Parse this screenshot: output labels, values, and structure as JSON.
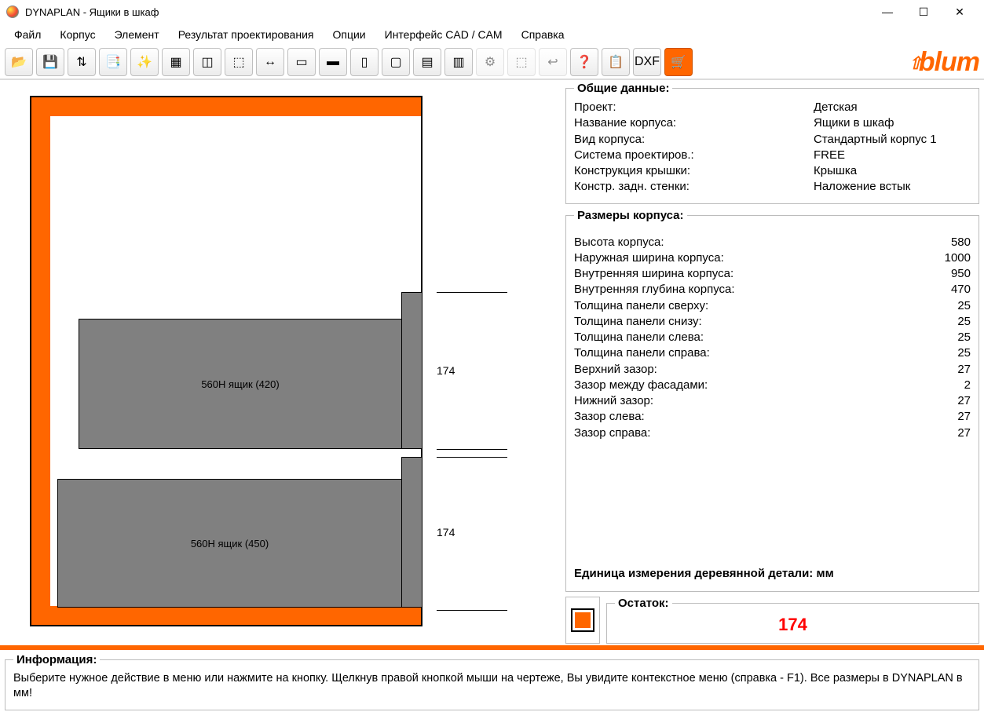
{
  "window": {
    "title": "DYNAPLAN - Ящики в шкаф"
  },
  "menu": {
    "file": "Файл",
    "corpus": "Корпус",
    "element": "Элемент",
    "result": "Результат проектирования",
    "options": "Опции",
    "cadcam": "Интерфейс CAD / CAM",
    "help": "Справка"
  },
  "brand": "blum",
  "drawing": {
    "drawer1_label": "560H ящик (420)",
    "drawer2_label": "560H ящик (450)",
    "dim1": "174",
    "dim2": "174"
  },
  "general": {
    "legend": "Общие данные:",
    "project_k": "Проект:",
    "project_v": "Детская",
    "name_k": "Название корпуса:",
    "name_v": "Ящики в шкаф",
    "type_k": "Вид корпуса:",
    "type_v": "Стандартный корпус 1",
    "system_k": "Система проектиров.:",
    "system_v": "FREE",
    "lid_k": "Конструкция крышки:",
    "lid_v": "Крышка",
    "back_k": "Констр. задн. стенки:",
    "back_v": "Наложение встык"
  },
  "dims": {
    "legend": "Размеры корпуса:",
    "rows": [
      {
        "k": "Высота корпуса:",
        "v": "580"
      },
      {
        "k": "Наружная ширина корпуса:",
        "v": "1000"
      },
      {
        "k": "Внутренняя ширина корпуса:",
        "v": "950"
      },
      {
        "k": "Внутренняя глубина корпуса:",
        "v": "470"
      },
      {
        "k": "Толщина панели сверху:",
        "v": "25"
      },
      {
        "k": "Толщина панели снизу:",
        "v": "25"
      },
      {
        "k": "Толщина панели слева:",
        "v": "25"
      },
      {
        "k": "Толщина панели справа:",
        "v": "25"
      },
      {
        "k": "Верхний зазор:",
        "v": "27"
      },
      {
        "k": "Зазор между фасадами:",
        "v": "2"
      },
      {
        "k": "Нижний зазор:",
        "v": "27"
      },
      {
        "k": "Зазор слева:",
        "v": "27"
      },
      {
        "k": "Зазор справа:",
        "v": "27"
      }
    ],
    "unit_note": "Единица измерения деревянной детали: мм"
  },
  "remainder": {
    "legend": "Остаток:",
    "value": "174"
  },
  "info": {
    "legend": "Информация:",
    "text": "Выберите нужное действие в меню или нажмите на кнопку. Щелкнув правой кнопкой мыши на чертеже, Вы увидите контекстное меню (справка - F1). Все размеры в DYNAPLAN в мм!"
  },
  "toolbar_icons": [
    "📂",
    "💾",
    "⇅",
    "📑",
    "✨",
    "▦",
    "◫",
    "⬚",
    "↔",
    "▭",
    "▬",
    "▯",
    "▢",
    "▤",
    "▥",
    "⚙",
    "⬚",
    "↩",
    "❓",
    "📋",
    "DXF",
    "🛒"
  ]
}
